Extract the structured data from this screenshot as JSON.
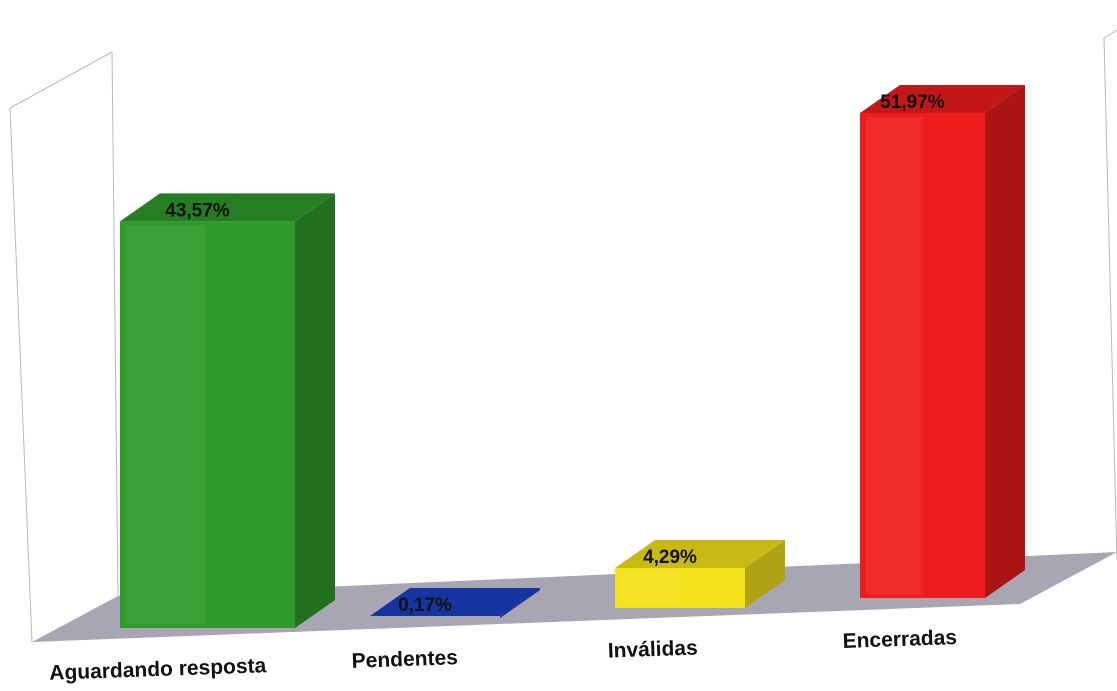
{
  "chart_data": {
    "type": "bar",
    "categories": [
      "Aguardando resposta",
      "Pendentes",
      "Inválidas",
      "Encerradas"
    ],
    "values": [
      43.57,
      0.17,
      4.29,
      51.97
    ],
    "value_labels": [
      "43,57%",
      "0,17%",
      "4,29%",
      "51,97%"
    ],
    "ylim": [
      0,
      60
    ],
    "grid": false,
    "legend": "none",
    "title": "",
    "xlabel": "",
    "ylabel": ""
  },
  "colors": {
    "series": [
      "#2f9a2a",
      "#1a3fc4",
      "#f4e21a",
      "#ee1c1c"
    ],
    "floor": "#a9a6b3",
    "wall_line": "#b8b8b8"
  }
}
